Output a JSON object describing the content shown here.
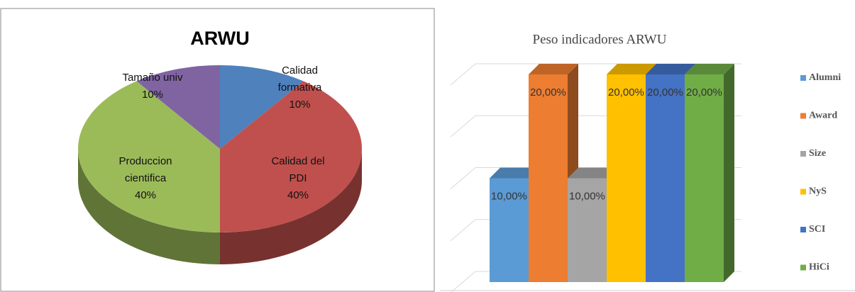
{
  "chart_data": [
    {
      "type": "pie",
      "title": "ARWU",
      "categories": [
        "Calidad formativa",
        "Calidad del PDI",
        "Produccion cientifica",
        "Tamaño univ"
      ],
      "values": [
        10,
        40,
        40,
        10
      ],
      "value_labels": [
        "10%",
        "40%",
        "40%",
        "10%"
      ],
      "colors": [
        "#4f81bd",
        "#c0504d",
        "#9bbb59",
        "#8064a2"
      ]
    },
    {
      "type": "bar",
      "title": "Peso indicadores ARWU",
      "series": [
        {
          "name": "Alumni",
          "color": "#5b9bd5",
          "values": [
            10
          ],
          "value_labels": [
            "10,00%"
          ]
        },
        {
          "name": "Award",
          "color": "#ed7d31",
          "values": [
            20
          ],
          "value_labels": [
            "20,00%"
          ]
        },
        {
          "name": "Size",
          "color": "#a5a5a5",
          "values": [
            10
          ],
          "value_labels": [
            "10,00%"
          ]
        },
        {
          "name": "NyS",
          "color": "#ffc000",
          "values": [
            20
          ],
          "value_labels": [
            "20,00%"
          ]
        },
        {
          "name": "SCI",
          "color": "#4472c4",
          "values": [
            20
          ],
          "value_labels": [
            "20,00%"
          ]
        },
        {
          "name": "HiCi",
          "color": "#70ad47",
          "values": [
            20
          ],
          "value_labels": [
            "20,00%"
          ]
        }
      ],
      "ylim": [
        0,
        20
      ],
      "yticks": [
        0,
        5,
        10,
        15,
        20
      ],
      "grid": true,
      "legend": "right"
    }
  ]
}
